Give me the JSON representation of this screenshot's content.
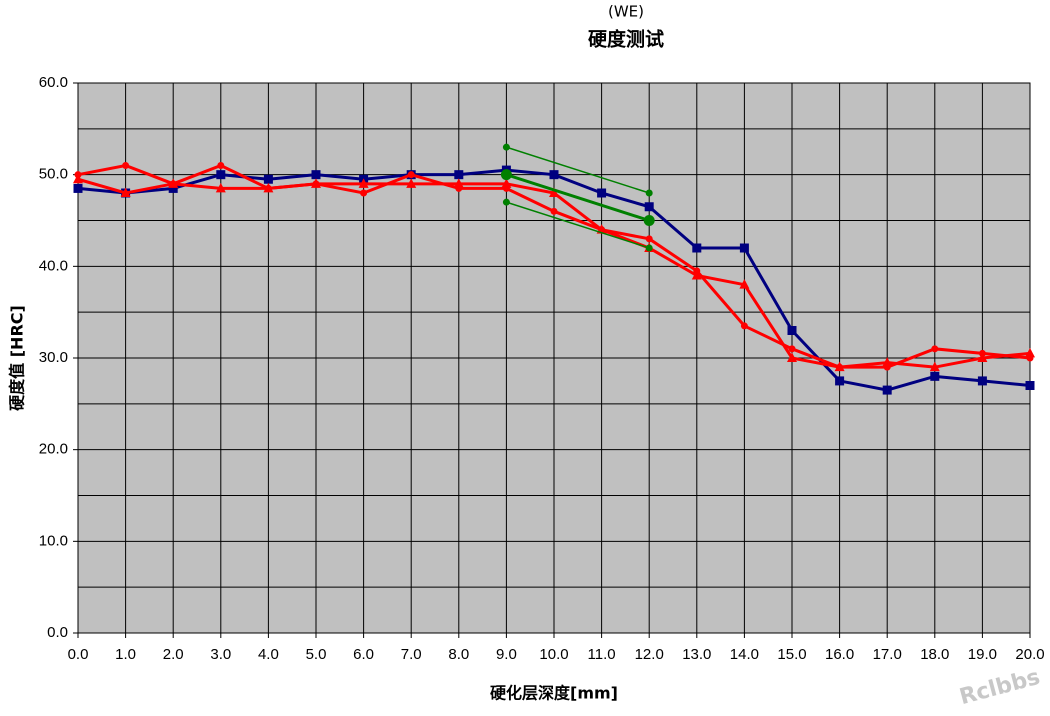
{
  "chart_data": {
    "type": "line",
    "subtitle": "(WE)",
    "title": "硬度测试",
    "y_label": "硬度值 [HRC]",
    "x_label": "硬化层深度[mm]",
    "watermark": "Rclbbs",
    "background": "#c0c0c0",
    "grid": true,
    "x": [
      0,
      1,
      2,
      3,
      4,
      5,
      6,
      7,
      8,
      9,
      10,
      11,
      12,
      13,
      14,
      15,
      16,
      17,
      18,
      19,
      20
    ],
    "xlim": [
      0,
      20
    ],
    "xticks": [
      {
        "value": 0,
        "label": "0.0"
      },
      {
        "value": 1,
        "label": "1.0"
      },
      {
        "value": 2,
        "label": "2.0"
      },
      {
        "value": 3,
        "label": "3.0"
      },
      {
        "value": 4,
        "label": "4.0"
      },
      {
        "value": 5,
        "label": "5.0"
      },
      {
        "value": 6,
        "label": "6.0"
      },
      {
        "value": 7,
        "label": "7.0"
      },
      {
        "value": 8,
        "label": "8.0"
      },
      {
        "value": 9,
        "label": "9.0"
      },
      {
        "value": 10,
        "label": "10.0"
      },
      {
        "value": 11,
        "label": "11.0"
      },
      {
        "value": 12,
        "label": "12.0"
      },
      {
        "value": 13,
        "label": "13.0"
      },
      {
        "value": 14,
        "label": "14.0"
      },
      {
        "value": 15,
        "label": "15.0"
      },
      {
        "value": 16,
        "label": "16.0"
      },
      {
        "value": 17,
        "label": "17.0"
      },
      {
        "value": 18,
        "label": "18.0"
      },
      {
        "value": 19,
        "label": "19.0"
      },
      {
        "value": 20,
        "label": "20.0"
      }
    ],
    "ylim": [
      0,
      60
    ],
    "yticks": [
      {
        "value": 0,
        "label": "0.0"
      },
      {
        "value": 10,
        "label": "10.0"
      },
      {
        "value": 20,
        "label": "20.0"
      },
      {
        "value": 30,
        "label": "30.0"
      },
      {
        "value": 40,
        "label": "40.0"
      },
      {
        "value": 50,
        "label": "50.0"
      },
      {
        "value": 60,
        "label": "60.0"
      }
    ],
    "yminor": [
      5,
      15,
      25,
      35,
      45,
      55
    ],
    "series": [
      {
        "color": "#000080",
        "marker": "square",
        "width": 3,
        "values": [
          48.5,
          48,
          48.5,
          50,
          49.5,
          50,
          49.5,
          50,
          50,
          50.5,
          50,
          48,
          46.5,
          42,
          42,
          33,
          27.5,
          26.5,
          28,
          27.5,
          27
        ]
      },
      {
        "color": "#ff0000",
        "marker": "triangle",
        "width": 3,
        "values": [
          49.5,
          48,
          49,
          48.5,
          48.5,
          49,
          49,
          49,
          49,
          49,
          48,
          44,
          42,
          39,
          38,
          30,
          29,
          29.5,
          29,
          30,
          30.5
        ]
      },
      {
        "color": "#ff0000",
        "marker": "circle",
        "width": 3,
        "values": [
          50,
          51,
          49,
          51,
          48.5,
          49,
          48,
          50,
          48.5,
          48.5,
          46,
          44,
          43,
          39.5,
          33.5,
          31,
          29,
          29,
          31,
          30.5,
          30
        ]
      },
      {
        "color": "#008000",
        "marker": "circle",
        "width": 1.5,
        "x": [
          9,
          12
        ],
        "values": [
          53,
          48
        ]
      },
      {
        "color": "#008000",
        "marker": "bigcircle",
        "width": 3,
        "x": [
          9,
          12
        ],
        "values": [
          50,
          45
        ]
      },
      {
        "color": "#008000",
        "marker": "circle",
        "width": 1.5,
        "x": [
          9,
          12
        ],
        "values": [
          47,
          42
        ]
      }
    ]
  }
}
